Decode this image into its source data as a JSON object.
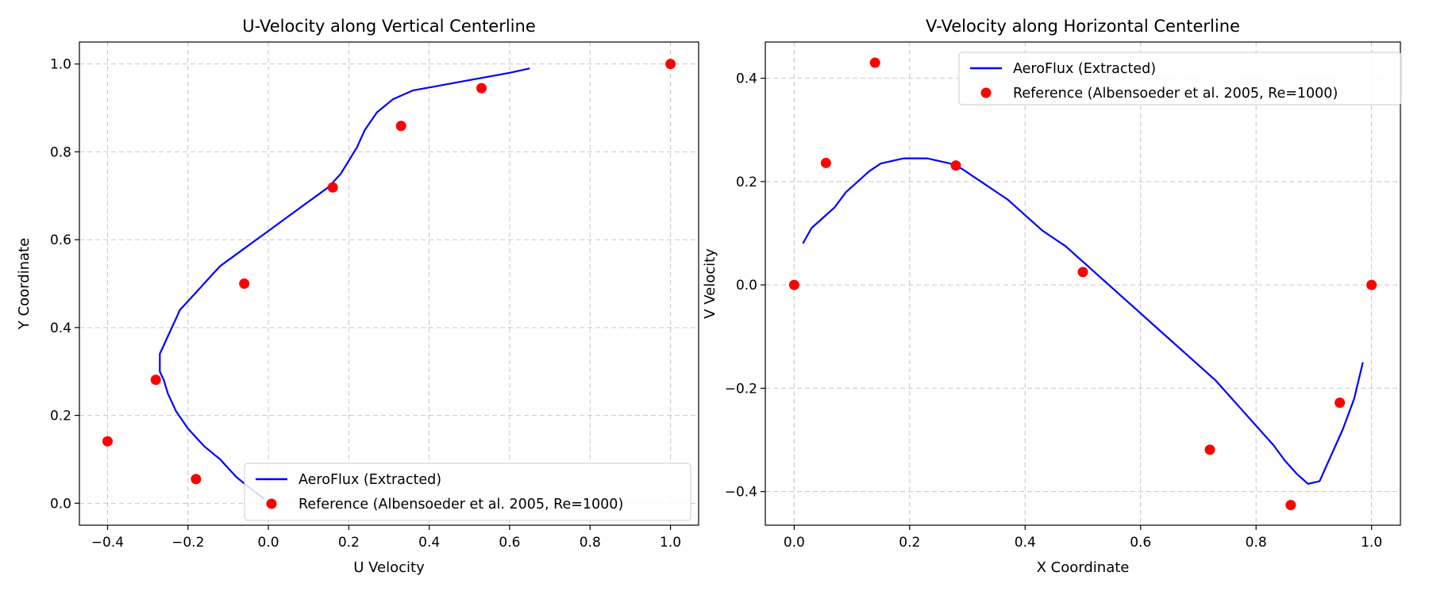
{
  "chart_data": [
    {
      "type": "line",
      "title": "U-Velocity along Vertical Centerline",
      "xlabel": "U Velocity",
      "ylabel": "Y Coordinate",
      "xlim": [
        -0.47,
        1.07
      ],
      "ylim": [
        -0.05,
        1.05
      ],
      "xticks": [
        -0.4,
        -0.2,
        0.0,
        0.2,
        0.4,
        0.6,
        0.8,
        1.0
      ],
      "xtick_labels": [
        "−0.4",
        "−0.2",
        "0.0",
        "0.2",
        "0.4",
        "0.6",
        "0.8",
        "1.0"
      ],
      "yticks": [
        0.0,
        0.2,
        0.4,
        0.6,
        0.8,
        1.0
      ],
      "ytick_labels": [
        "0.0",
        "0.2",
        "0.4",
        "0.6",
        "0.8",
        "1.0"
      ],
      "grid": true,
      "legend_position": "bottom-right",
      "series": [
        {
          "name": "AeroFlux (Extracted)",
          "kind": "line",
          "color": "#0000ff",
          "x": [
            -0.01,
            -0.04,
            -0.08,
            -0.12,
            -0.16,
            -0.2,
            -0.23,
            -0.25,
            -0.26,
            -0.27,
            -0.27,
            -0.27,
            -0.26,
            -0.25,
            -0.24,
            -0.23,
            -0.22,
            -0.2,
            -0.18,
            -0.16,
            -0.14,
            -0.12,
            -0.09,
            -0.06,
            -0.03,
            0.0,
            0.03,
            0.06,
            0.09,
            0.12,
            0.15,
            0.18,
            0.2,
            0.22,
            0.24,
            0.27,
            0.31,
            0.36,
            0.42,
            0.48,
            0.54,
            0.6,
            0.65
          ],
          "y": [
            0.01,
            0.03,
            0.06,
            0.1,
            0.13,
            0.17,
            0.21,
            0.25,
            0.28,
            0.3,
            0.32,
            0.34,
            0.36,
            0.38,
            0.4,
            0.42,
            0.44,
            0.46,
            0.48,
            0.5,
            0.52,
            0.54,
            0.56,
            0.58,
            0.6,
            0.62,
            0.64,
            0.66,
            0.68,
            0.7,
            0.72,
            0.75,
            0.78,
            0.81,
            0.85,
            0.89,
            0.92,
            0.94,
            0.95,
            0.96,
            0.97,
            0.98,
            0.99
          ]
        },
        {
          "name": "Reference (Albensoeder et al. 2005, Re=1000)",
          "kind": "scatter",
          "color": "#ff0000",
          "x": [
            -0.18,
            -0.4,
            -0.28,
            -0.06,
            0.16,
            0.33,
            0.53,
            1.0
          ],
          "y": [
            0.055,
            0.141,
            0.281,
            0.5,
            0.719,
            0.859,
            0.945,
            1.0
          ]
        }
      ]
    },
    {
      "type": "line",
      "title": "V-Velocity along Horizontal Centerline",
      "xlabel": "X Coordinate",
      "ylabel": "V Velocity",
      "xlim": [
        -0.05,
        1.05
      ],
      "ylim": [
        -0.465,
        0.47
      ],
      "xticks": [
        0.0,
        0.2,
        0.4,
        0.6,
        0.8,
        1.0
      ],
      "xtick_labels": [
        "0.0",
        "0.2",
        "0.4",
        "0.6",
        "0.8",
        "1.0"
      ],
      "yticks": [
        -0.4,
        -0.2,
        0.0,
        0.2,
        0.4
      ],
      "ytick_labels": [
        "−0.4",
        "−0.2",
        "0.0",
        "0.2",
        "0.4"
      ],
      "grid": true,
      "legend_position": "top-right",
      "series": [
        {
          "name": "AeroFlux (Extracted)",
          "kind": "line",
          "color": "#0000ff",
          "x": [
            0.015,
            0.03,
            0.05,
            0.07,
            0.09,
            0.11,
            0.13,
            0.15,
            0.17,
            0.19,
            0.21,
            0.23,
            0.25,
            0.27,
            0.29,
            0.31,
            0.33,
            0.35,
            0.37,
            0.39,
            0.41,
            0.43,
            0.45,
            0.47,
            0.49,
            0.51,
            0.53,
            0.55,
            0.57,
            0.59,
            0.61,
            0.63,
            0.65,
            0.67,
            0.69,
            0.71,
            0.73,
            0.75,
            0.77,
            0.79,
            0.81,
            0.83,
            0.85,
            0.87,
            0.89,
            0.91,
            0.93,
            0.95,
            0.97,
            0.985
          ],
          "y": [
            0.08,
            0.11,
            0.13,
            0.15,
            0.18,
            0.2,
            0.22,
            0.235,
            0.24,
            0.245,
            0.245,
            0.245,
            0.24,
            0.235,
            0.225,
            0.21,
            0.195,
            0.18,
            0.165,
            0.145,
            0.125,
            0.105,
            0.09,
            0.075,
            0.055,
            0.035,
            0.015,
            -0.005,
            -0.025,
            -0.045,
            -0.065,
            -0.085,
            -0.105,
            -0.125,
            -0.145,
            -0.165,
            -0.185,
            -0.21,
            -0.235,
            -0.26,
            -0.285,
            -0.31,
            -0.34,
            -0.365,
            -0.385,
            -0.38,
            -0.33,
            -0.28,
            -0.22,
            -0.15
          ]
        },
        {
          "name": "Reference (Albensoeder et al. 2005, Re=1000)",
          "kind": "scatter",
          "color": "#ff0000",
          "x": [
            0.0,
            0.055,
            0.14,
            0.28,
            0.5,
            0.72,
            0.86,
            0.945,
            1.0
          ],
          "y": [
            0.0,
            0.236,
            0.43,
            0.231,
            0.025,
            -0.319,
            -0.426,
            -0.228,
            0.0
          ]
        }
      ]
    }
  ]
}
